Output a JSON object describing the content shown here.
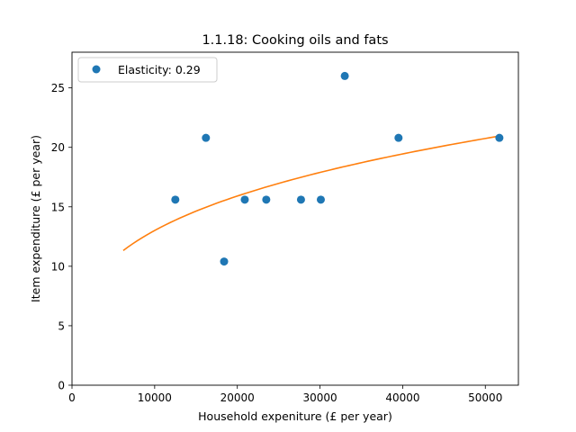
{
  "chart_data": {
    "type": "scatter",
    "title": "1.1.18: Cooking oils and fats",
    "xlabel": "Household expeniture (£ per year)",
    "ylabel": "Item expenditure (£ per year)",
    "xlim": [
      0,
      54000
    ],
    "ylim": [
      0,
      28
    ],
    "xticks": [
      0,
      10000,
      20000,
      30000,
      40000,
      50000
    ],
    "yticks": [
      0,
      5,
      10,
      15,
      20,
      25
    ],
    "grid": false,
    "legend_position": "top-left",
    "series": [
      {
        "name": "Elasticity: 0.29",
        "kind": "points",
        "color": "#1f77b4",
        "points": [
          [
            12500,
            15.6
          ],
          [
            16200,
            20.8
          ],
          [
            18400,
            10.4
          ],
          [
            20900,
            15.6
          ],
          [
            23500,
            15.6
          ],
          [
            27700,
            15.6
          ],
          [
            30100,
            15.6
          ],
          [
            33000,
            26.0
          ],
          [
            39500,
            20.8
          ],
          [
            51700,
            20.8
          ]
        ]
      },
      {
        "kind": "fit-curve",
        "color": "#ff7f0e",
        "curve": {
          "form": "a * x^b",
          "a": 0.9,
          "b": 0.29,
          "x_range": [
            6200,
            51700
          ]
        }
      }
    ]
  }
}
